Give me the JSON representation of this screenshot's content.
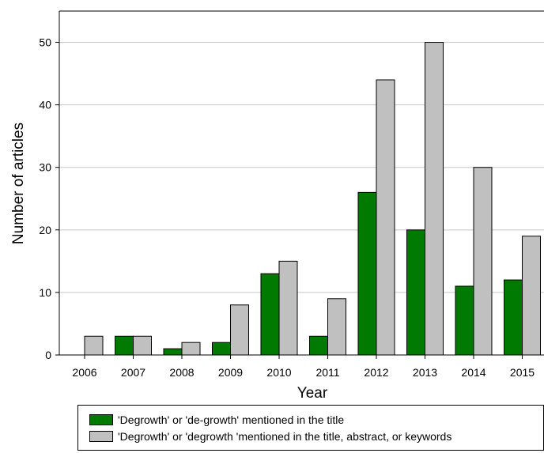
{
  "chart_data": {
    "type": "bar",
    "categories": [
      "2006",
      "2007",
      "2008",
      "2009",
      "2010",
      "2011",
      "2012",
      "2013",
      "2014",
      "2015"
    ],
    "series": [
      {
        "name": "'Degrowth' or 'de-growth' mentioned in the title",
        "values": [
          0,
          3,
          1,
          2,
          13,
          3,
          26,
          20,
          11,
          12
        ],
        "color": "#007a00"
      },
      {
        "name": "'Degrowth' or 'degrowth 'mentioned in the title, abstract, or keywords",
        "values": [
          3,
          3,
          2,
          8,
          15,
          9,
          44,
          50,
          30,
          19
        ],
        "color": "#c0c0c0"
      }
    ],
    "title": "",
    "xlabel": "Year",
    "ylabel": "Number of articles",
    "ylim": [
      0,
      55
    ],
    "yticks": [
      0,
      10,
      20,
      30,
      40,
      50
    ],
    "grid": true,
    "legend": "bottom"
  }
}
